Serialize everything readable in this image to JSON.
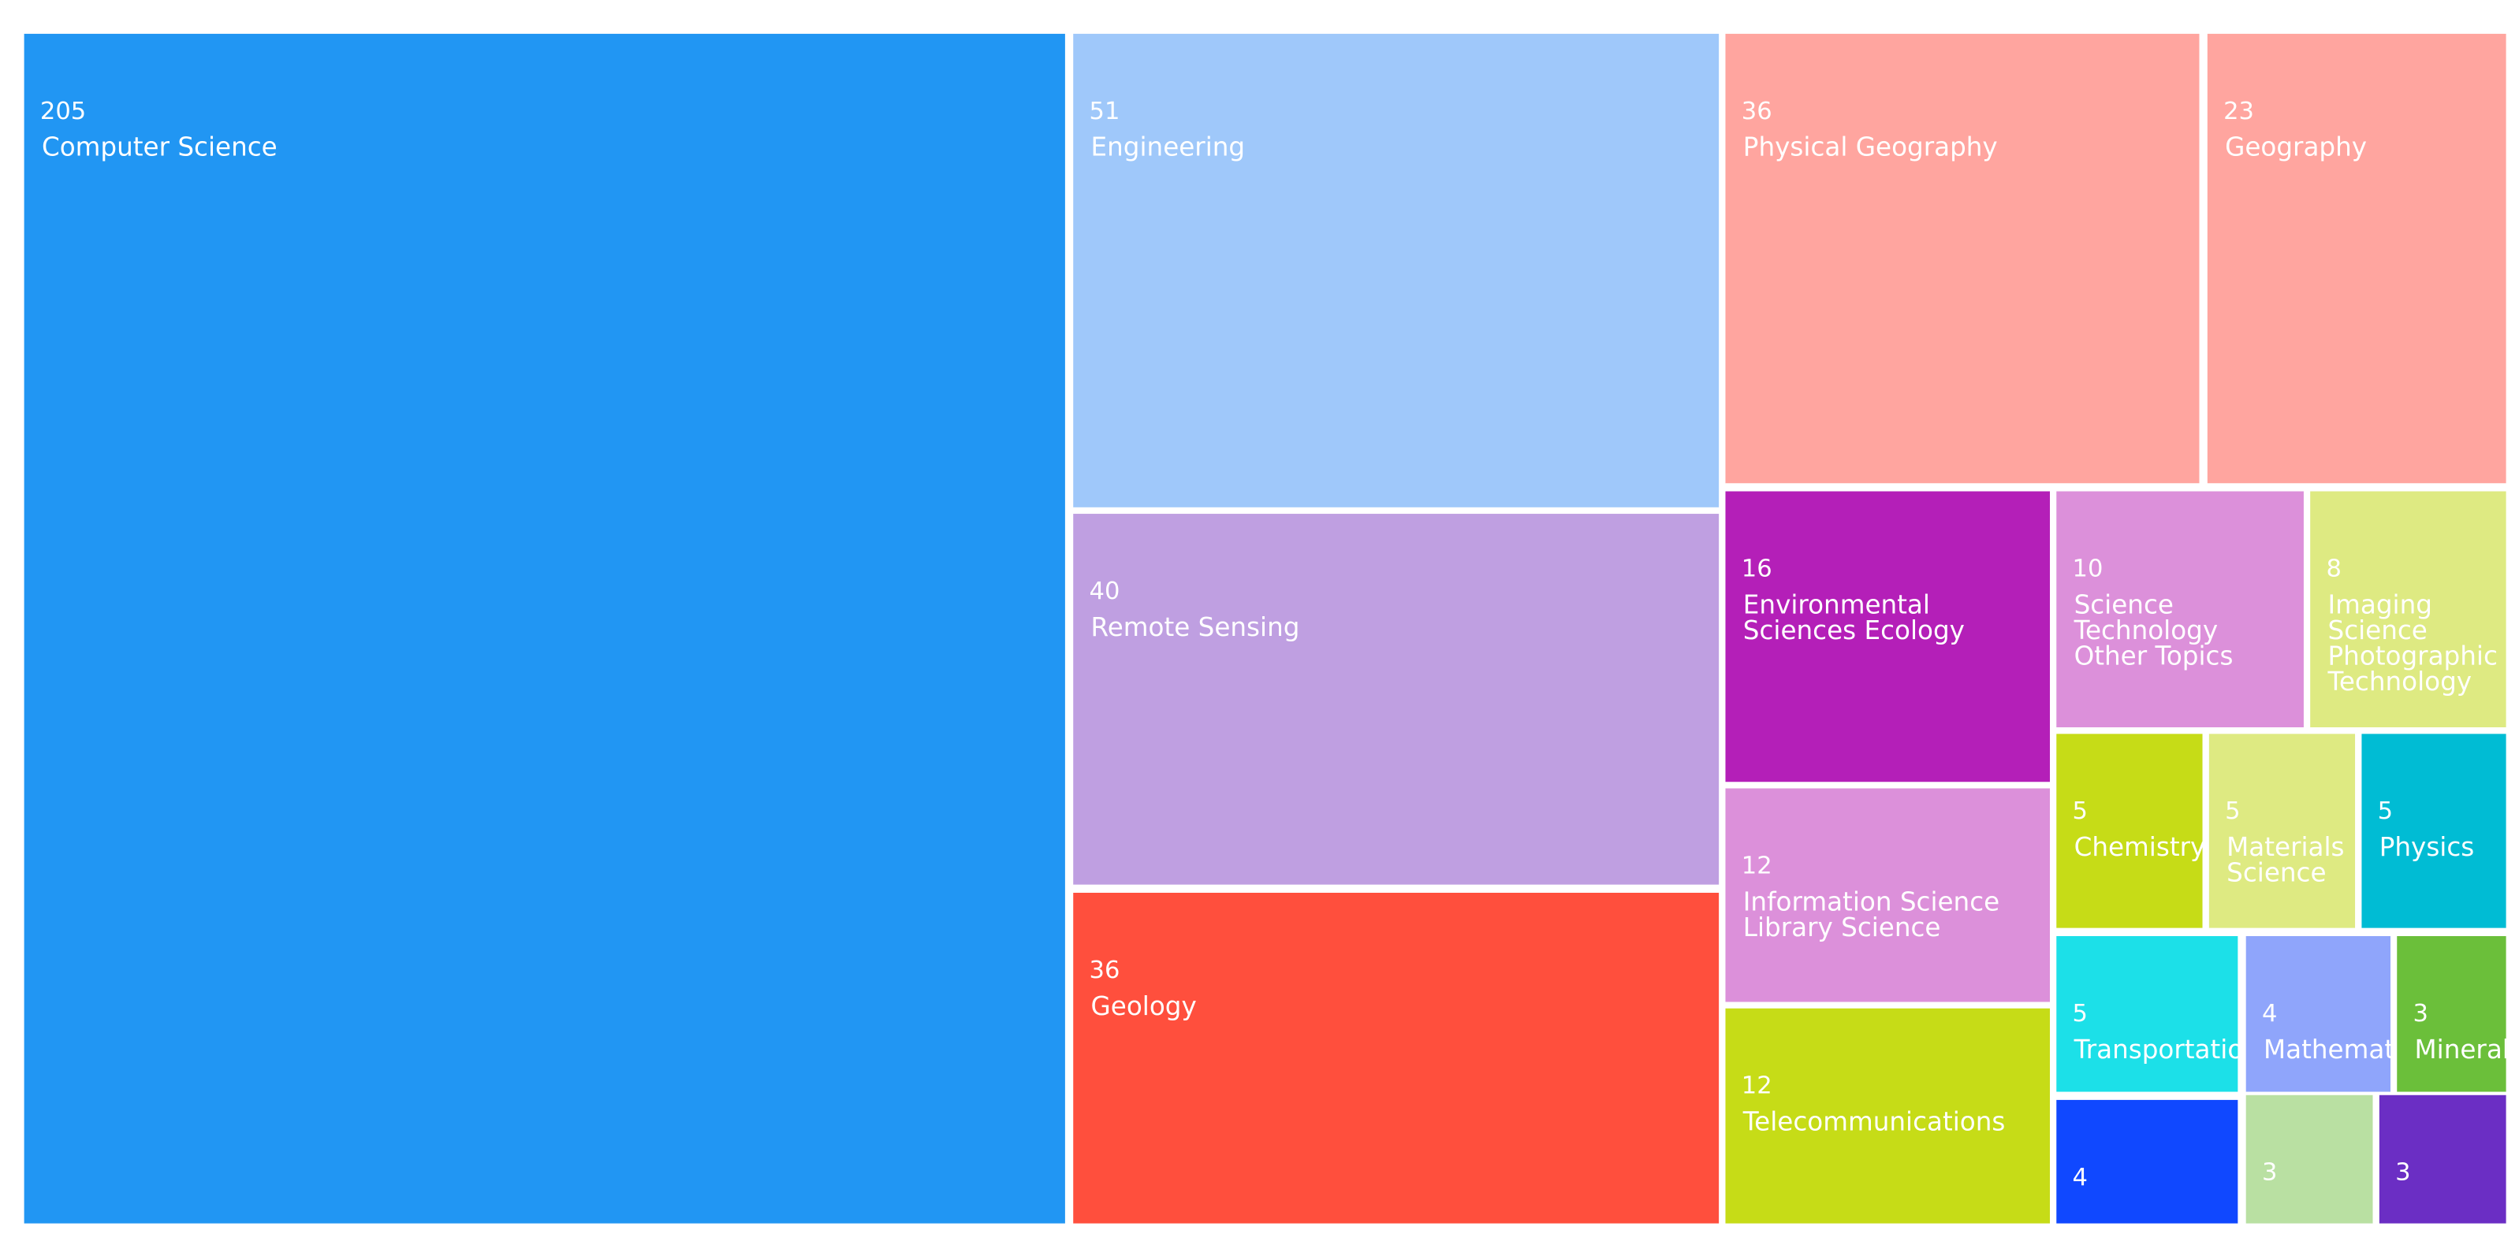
{
  "chart_data": {
    "type": "treemap",
    "categories": [
      "Computer Science",
      "Engineering",
      "Remote Sensing",
      "Geology",
      "Physical Geography",
      "Geography",
      "Environmental Sciences Ecology",
      "Information Science Library Science",
      "Telecommunications",
      "Science Technology Other Topics",
      "Imaging Science Photographic Technology",
      "Chemistry",
      "Materials Science",
      "Physics",
      "Transportation",
      "Mathematics",
      "Mineralogy",
      null,
      null,
      null
    ],
    "values": [
      205,
      51,
      40,
      36,
      36,
      23,
      16,
      12,
      12,
      10,
      8,
      5,
      5,
      5,
      5,
      4,
      3,
      4,
      3,
      3
    ],
    "colors": [
      "#2196f3",
      "#9fc8fa",
      "#bf9fe1",
      "#ff4f3d",
      "#ffa59f",
      "#ffa59f",
      "#b41fb8",
      "#dc90da",
      "#c6dc17",
      "#dc90da",
      "#deea82",
      "#c6dc17",
      "#deea82",
      "#00bcd4",
      "#1ce0e8",
      "#8fa5fb",
      "#6bbf3a",
      "#1048ff",
      "#b9e0a2",
      "#6b2ec4"
    ]
  }
}
